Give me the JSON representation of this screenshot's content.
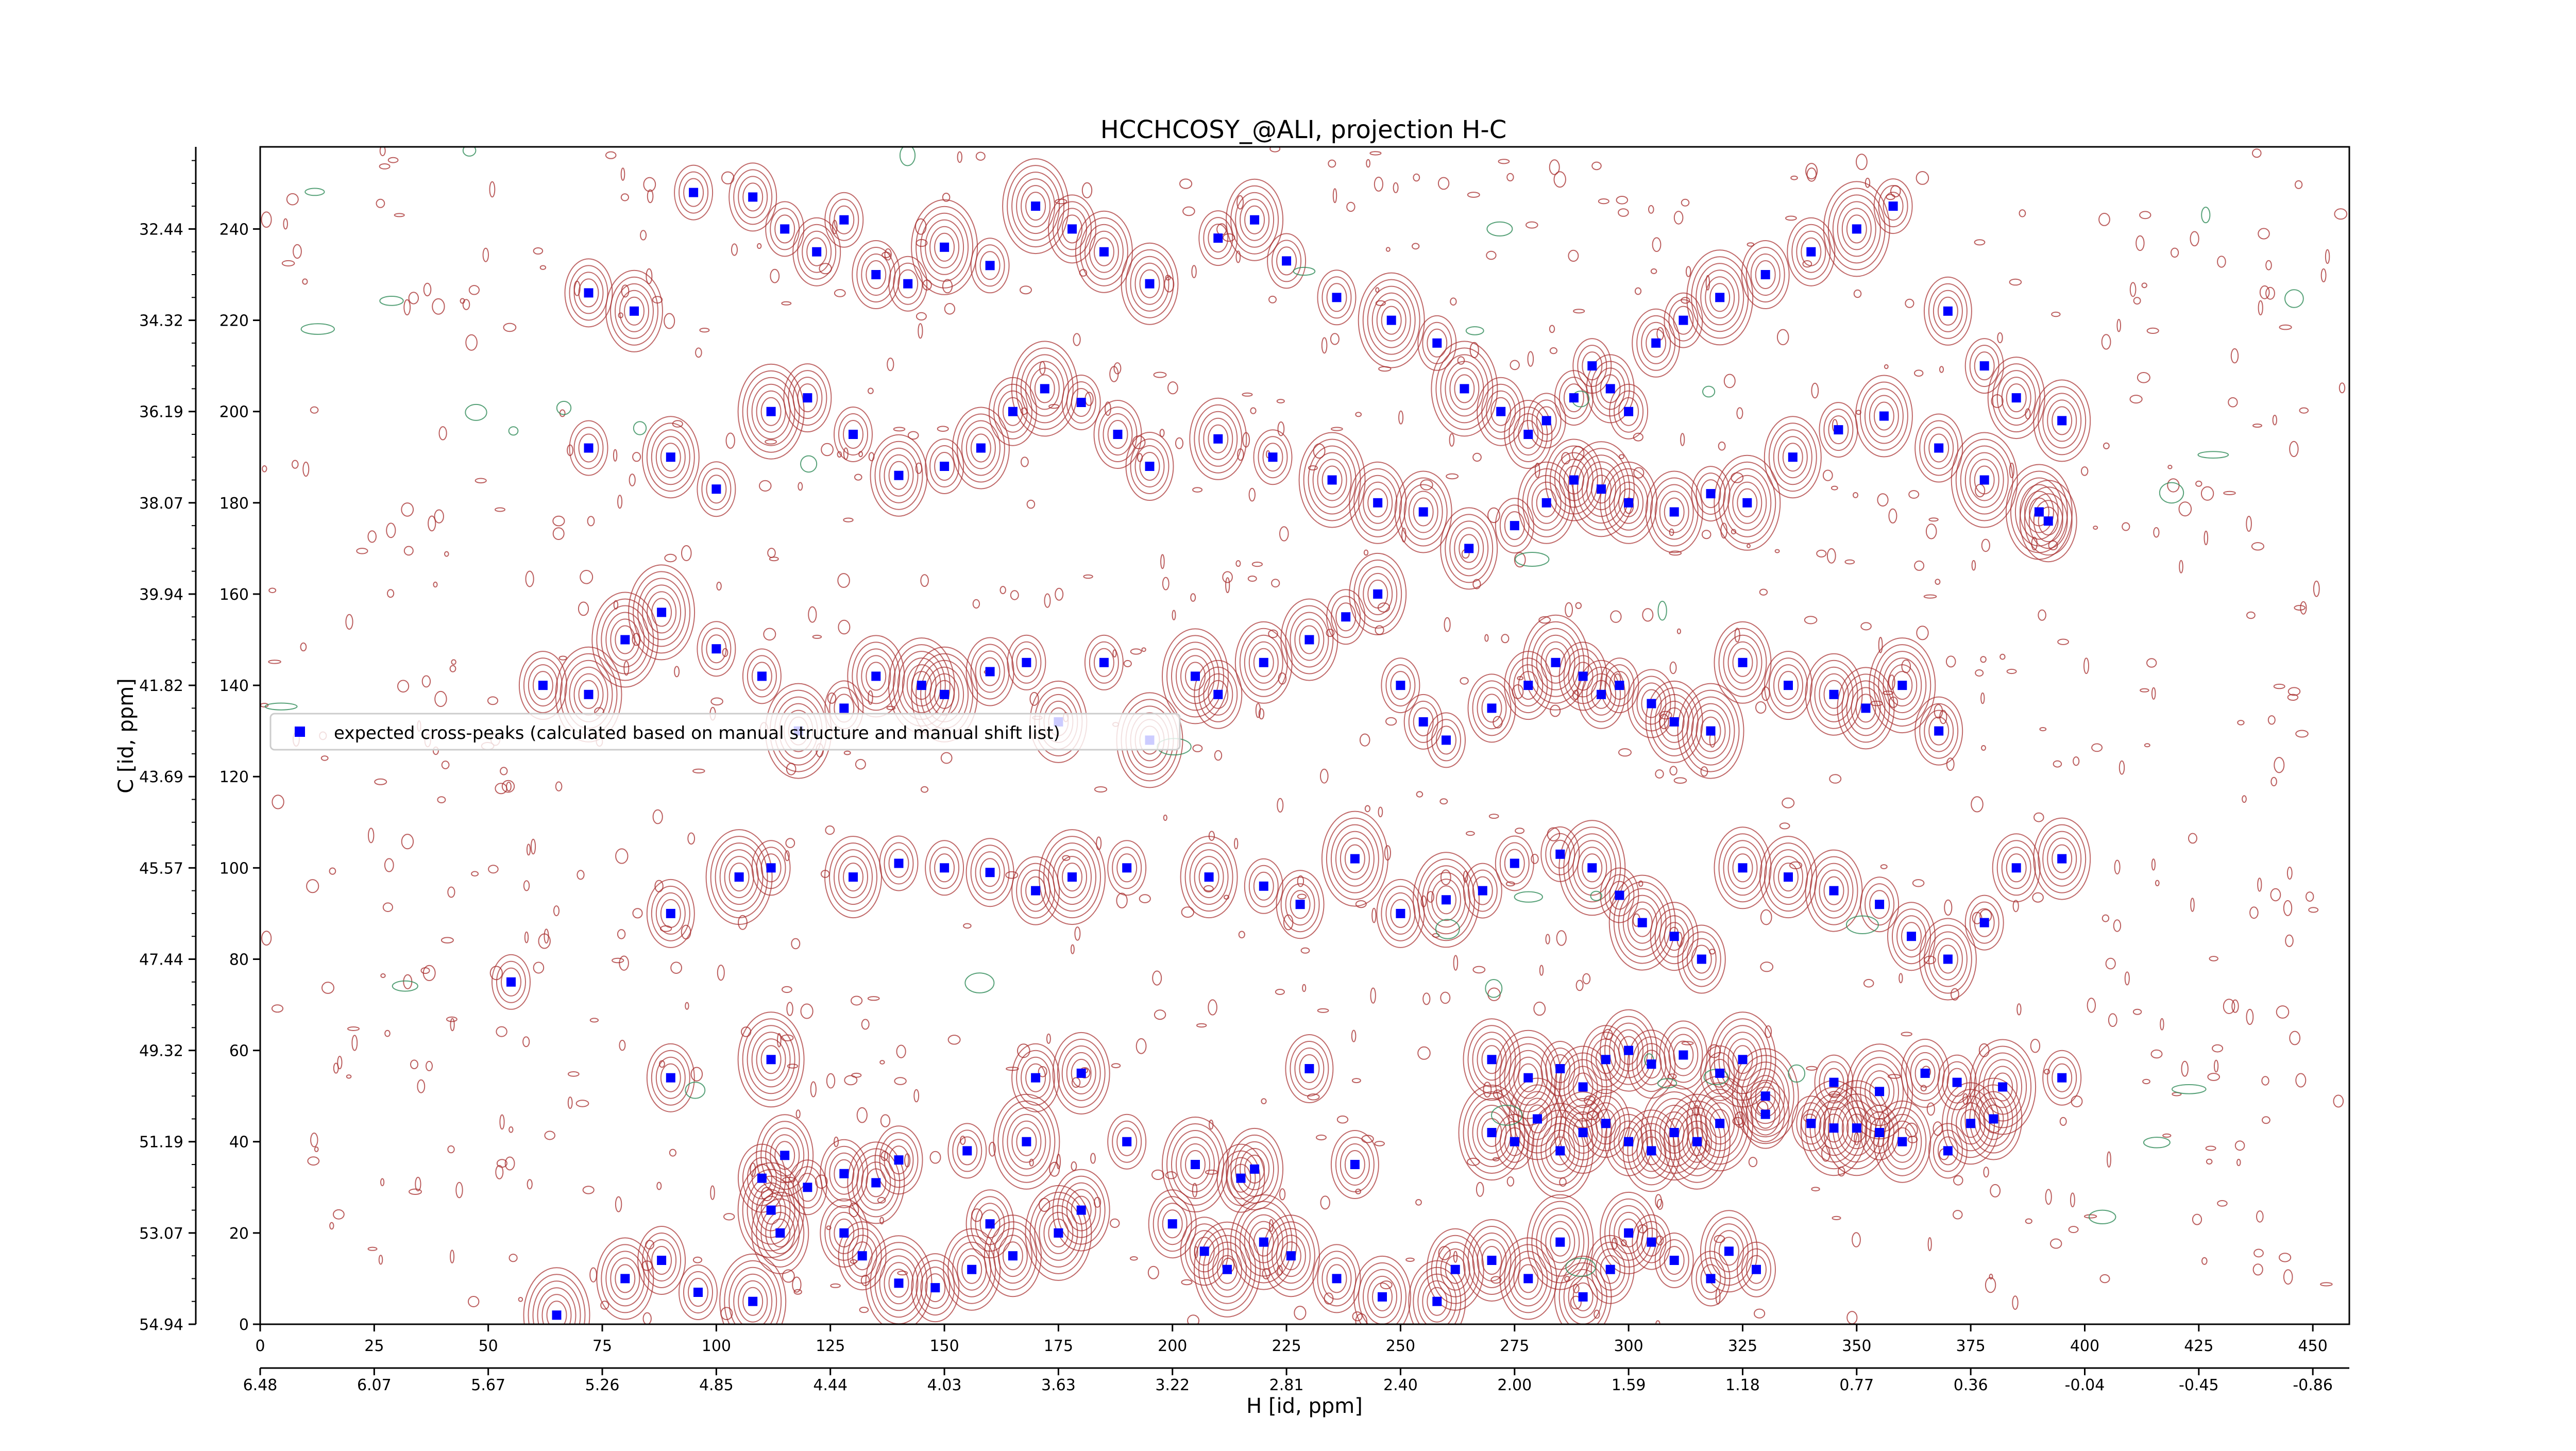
{
  "chart_data": {
    "type": "scatter",
    "title": "HCCHCOSY_@ALI, projection H-C",
    "xlabel": "H [id, ppm]",
    "ylabel": "C [id, ppm]",
    "x_index_ticks": [
      "0",
      "25",
      "50",
      "75",
      "100",
      "125",
      "150",
      "175",
      "200",
      "225",
      "250",
      "275",
      "300",
      "325",
      "350",
      "375",
      "400",
      "425",
      "450"
    ],
    "x_ppm_ticks": [
      "6.48",
      "6.07",
      "5.67",
      "5.26",
      "4.85",
      "4.44",
      "4.03",
      "3.63",
      "3.22",
      "2.81",
      "2.40",
      "2.00",
      "1.59",
      "1.18",
      "0.77",
      "0.36",
      "-0.04",
      "-0.45",
      "-0.86"
    ],
    "y_index_ticks": [
      "0",
      "20",
      "40",
      "60",
      "80",
      "100",
      "120",
      "140",
      "160",
      "180",
      "200",
      "220",
      "240"
    ],
    "y_ppm_ticks": [
      "54.94",
      "53.07",
      "51.19",
      "49.32",
      "47.44",
      "45.57",
      "43.69",
      "41.82",
      "39.94",
      "38.07",
      "36.19",
      "34.32",
      "32.44"
    ],
    "xlim": [
      0,
      458
    ],
    "ylim": [
      0,
      258
    ],
    "legend": {
      "label": "expected cross-peaks (calculated based on manual structure and manual shift list)",
      "placement": "center-left"
    },
    "colors": {
      "marker": "#0000ff",
      "positive_contour": "#a52a2a",
      "negative_contour": "#2e8b57"
    },
    "series": [
      {
        "name": "expected cross-peaks (calculated based on manual structure and manual shift list)",
        "points": [
          [
            65,
            2
          ],
          [
            80,
            10
          ],
          [
            88,
            14
          ],
          [
            96,
            7
          ],
          [
            108,
            5
          ],
          [
            112,
            25
          ],
          [
            114,
            20
          ],
          [
            120,
            30
          ],
          [
            128,
            20
          ],
          [
            132,
            15
          ],
          [
            140,
            9
          ],
          [
            148,
            8
          ],
          [
            156,
            12
          ],
          [
            160,
            22
          ],
          [
            165,
            15
          ],
          [
            175,
            20
          ],
          [
            180,
            25
          ],
          [
            200,
            22
          ],
          [
            207,
            16
          ],
          [
            212,
            12
          ],
          [
            220,
            18
          ],
          [
            226,
            15
          ],
          [
            236,
            10
          ],
          [
            246,
            6
          ],
          [
            258,
            5
          ],
          [
            262,
            12
          ],
          [
            270,
            14
          ],
          [
            278,
            10
          ],
          [
            285,
            18
          ],
          [
            290,
            6
          ],
          [
            296,
            12
          ],
          [
            300,
            20
          ],
          [
            305,
            18
          ],
          [
            310,
            14
          ],
          [
            318,
            10
          ],
          [
            322,
            16
          ],
          [
            328,
            12
          ],
          [
            110,
            32
          ],
          [
            115,
            37
          ],
          [
            128,
            33
          ],
          [
            135,
            31
          ],
          [
            140,
            36
          ],
          [
            155,
            38
          ],
          [
            168,
            40
          ],
          [
            190,
            40
          ],
          [
            205,
            35
          ],
          [
            215,
            32
          ],
          [
            218,
            34
          ],
          [
            240,
            35
          ],
          [
            270,
            42
          ],
          [
            275,
            40
          ],
          [
            280,
            45
          ],
          [
            285,
            38
          ],
          [
            290,
            42
          ],
          [
            295,
            44
          ],
          [
            300,
            40
          ],
          [
            305,
            38
          ],
          [
            310,
            42
          ],
          [
            315,
            40
          ],
          [
            320,
            44
          ],
          [
            330,
            46
          ],
          [
            340,
            44
          ],
          [
            345,
            43
          ],
          [
            350,
            43
          ],
          [
            355,
            42
          ],
          [
            360,
            40
          ],
          [
            370,
            38
          ],
          [
            375,
            44
          ],
          [
            380,
            45
          ],
          [
            90,
            54
          ],
          [
            112,
            58
          ],
          [
            170,
            54
          ],
          [
            180,
            55
          ],
          [
            230,
            56
          ],
          [
            270,
            58
          ],
          [
            278,
            54
          ],
          [
            285,
            56
          ],
          [
            290,
            52
          ],
          [
            295,
            58
          ],
          [
            300,
            60
          ],
          [
            305,
            57
          ],
          [
            312,
            59
          ],
          [
            320,
            55
          ],
          [
            325,
            58
          ],
          [
            330,
            50
          ],
          [
            345,
            53
          ],
          [
            355,
            51
          ],
          [
            365,
            55
          ],
          [
            372,
            53
          ],
          [
            382,
            52
          ],
          [
            395,
            54
          ],
          [
            55,
            75
          ],
          [
            90,
            90
          ],
          [
            105,
            98
          ],
          [
            112,
            100
          ],
          [
            130,
            98
          ],
          [
            140,
            101
          ],
          [
            150,
            100
          ],
          [
            160,
            99
          ],
          [
            170,
            95
          ],
          [
            178,
            98
          ],
          [
            190,
            100
          ],
          [
            208,
            98
          ],
          [
            220,
            96
          ],
          [
            228,
            92
          ],
          [
            240,
            102
          ],
          [
            250,
            90
          ],
          [
            260,
            93
          ],
          [
            268,
            95
          ],
          [
            275,
            101
          ],
          [
            285,
            103
          ],
          [
            292,
            100
          ],
          [
            298,
            94
          ],
          [
            303,
            88
          ],
          [
            310,
            85
          ],
          [
            316,
            80
          ],
          [
            325,
            100
          ],
          [
            335,
            98
          ],
          [
            345,
            95
          ],
          [
            355,
            92
          ],
          [
            362,
            85
          ],
          [
            370,
            80
          ],
          [
            378,
            88
          ],
          [
            385,
            100
          ],
          [
            395,
            102
          ],
          [
            62,
            140
          ],
          [
            72,
            138
          ],
          [
            80,
            150
          ],
          [
            88,
            156
          ],
          [
            100,
            148
          ],
          [
            110,
            142
          ],
          [
            118,
            130
          ],
          [
            128,
            135
          ],
          [
            135,
            142
          ],
          [
            145,
            140
          ],
          [
            150,
            138
          ],
          [
            160,
            143
          ],
          [
            168,
            145
          ],
          [
            175,
            132
          ],
          [
            185,
            145
          ],
          [
            195,
            128
          ],
          [
            205,
            142
          ],
          [
            210,
            138
          ],
          [
            220,
            145
          ],
          [
            230,
            150
          ],
          [
            238,
            155
          ],
          [
            245,
            160
          ],
          [
            250,
            140
          ],
          [
            255,
            132
          ],
          [
            260,
            128
          ],
          [
            270,
            135
          ],
          [
            278,
            140
          ],
          [
            284,
            145
          ],
          [
            290,
            142
          ],
          [
            294,
            138
          ],
          [
            298,
            140
          ],
          [
            305,
            136
          ],
          [
            310,
            132
          ],
          [
            318,
            130
          ],
          [
            325,
            145
          ],
          [
            335,
            140
          ],
          [
            345,
            138
          ],
          [
            352,
            135
          ],
          [
            360,
            140
          ],
          [
            368,
            130
          ],
          [
            72,
            192
          ],
          [
            90,
            190
          ],
          [
            100,
            183
          ],
          [
            112,
            200
          ],
          [
            120,
            203
          ],
          [
            130,
            195
          ],
          [
            140,
            186
          ],
          [
            150,
            188
          ],
          [
            158,
            192
          ],
          [
            165,
            200
          ],
          [
            172,
            205
          ],
          [
            180,
            202
          ],
          [
            188,
            195
          ],
          [
            195,
            188
          ],
          [
            210,
            194
          ],
          [
            222,
            190
          ],
          [
            235,
            185
          ],
          [
            245,
            180
          ],
          [
            255,
            178
          ],
          [
            265,
            170
          ],
          [
            275,
            175
          ],
          [
            282,
            180
          ],
          [
            288,
            185
          ],
          [
            294,
            183
          ],
          [
            300,
            180
          ],
          [
            310,
            178
          ],
          [
            318,
            182
          ],
          [
            326,
            180
          ],
          [
            336,
            190
          ],
          [
            346,
            196
          ],
          [
            356,
            199
          ],
          [
            368,
            192
          ],
          [
            378,
            185
          ],
          [
            390,
            178
          ],
          [
            392,
            176
          ],
          [
            72,
            226
          ],
          [
            82,
            222
          ],
          [
            95,
            248
          ],
          [
            108,
            247
          ],
          [
            115,
            240
          ],
          [
            122,
            235
          ],
          [
            128,
            242
          ],
          [
            135,
            230
          ],
          [
            142,
            228
          ],
          [
            150,
            236
          ],
          [
            160,
            232
          ],
          [
            170,
            245
          ],
          [
            178,
            240
          ],
          [
            185,
            235
          ],
          [
            195,
            228
          ],
          [
            210,
            238
          ],
          [
            218,
            242
          ],
          [
            225,
            233
          ],
          [
            236,
            225
          ],
          [
            248,
            220
          ],
          [
            258,
            215
          ],
          [
            264,
            205
          ],
          [
            272,
            200
          ],
          [
            278,
            195
          ],
          [
            282,
            198
          ],
          [
            288,
            203
          ],
          [
            292,
            210
          ],
          [
            296,
            205
          ],
          [
            300,
            200
          ],
          [
            306,
            215
          ],
          [
            312,
            220
          ],
          [
            320,
            225
          ],
          [
            330,
            230
          ],
          [
            340,
            235
          ],
          [
            350,
            240
          ],
          [
            358,
            245
          ],
          [
            370,
            222
          ],
          [
            378,
            210
          ],
          [
            385,
            203
          ],
          [
            395,
            198
          ]
        ]
      }
    ]
  }
}
